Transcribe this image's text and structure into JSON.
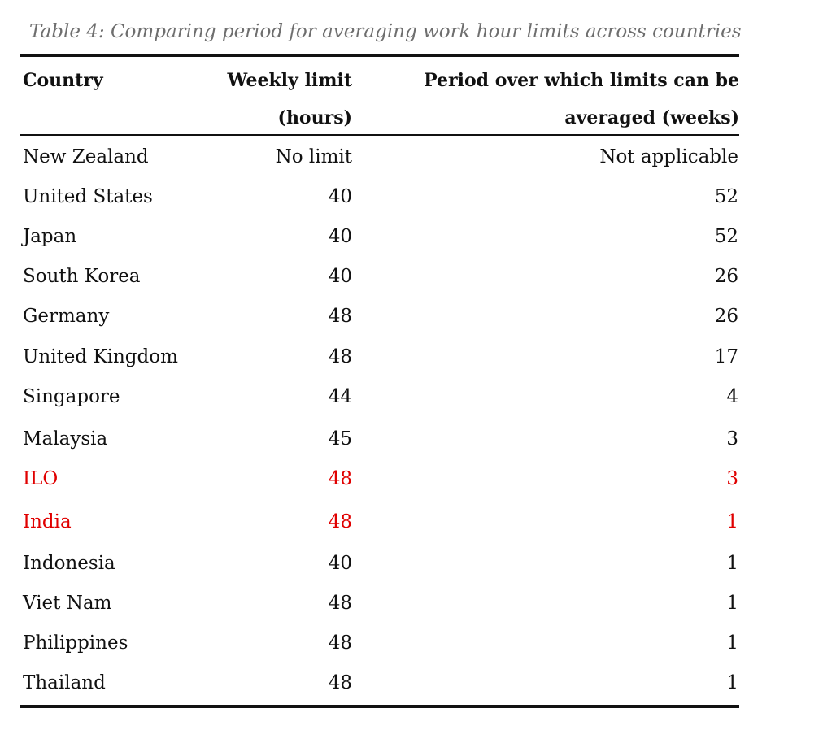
{
  "caption": "Table 4: Comparing period for averaging work hour limits across countries",
  "columns": {
    "country": "Country",
    "limit_line1": "Weekly limit",
    "limit_line2": "(hours)",
    "period_line1": "Period over which limits can be",
    "period_line2": "averaged (weeks)"
  },
  "rows": [
    {
      "country": "New Zealand",
      "limit": "No limit",
      "period": "Not applicable"
    },
    {
      "country": "United States",
      "limit": "40",
      "period": "52"
    },
    {
      "country": "Japan",
      "limit": "40",
      "period": "52"
    },
    {
      "country": "South Korea",
      "limit": "40",
      "period": "26"
    },
    {
      "country": "Germany",
      "limit": "48",
      "period": "26"
    },
    {
      "country": "United Kingdom",
      "limit": "48",
      "period": "17"
    },
    {
      "country": "Singapore",
      "limit": "44",
      "period": "4"
    },
    {
      "country": "Malaysia",
      "limit": "45",
      "period": "3"
    },
    {
      "country": "ILO",
      "limit": "48",
      "period": "3"
    },
    {
      "country": "India",
      "limit": "48",
      "period": "1"
    },
    {
      "country": "Indonesia",
      "limit": "40",
      "period": "1"
    },
    {
      "country": "Viet Nam",
      "limit": "48",
      "period": "1"
    },
    {
      "country": "Philippines",
      "limit": "48",
      "period": "1"
    },
    {
      "country": "Thailand",
      "limit": "48",
      "period": "1"
    }
  ],
  "colors": {
    "text": "#111111",
    "caption": "#6e6e6e",
    "highlight": "#e00000"
  }
}
